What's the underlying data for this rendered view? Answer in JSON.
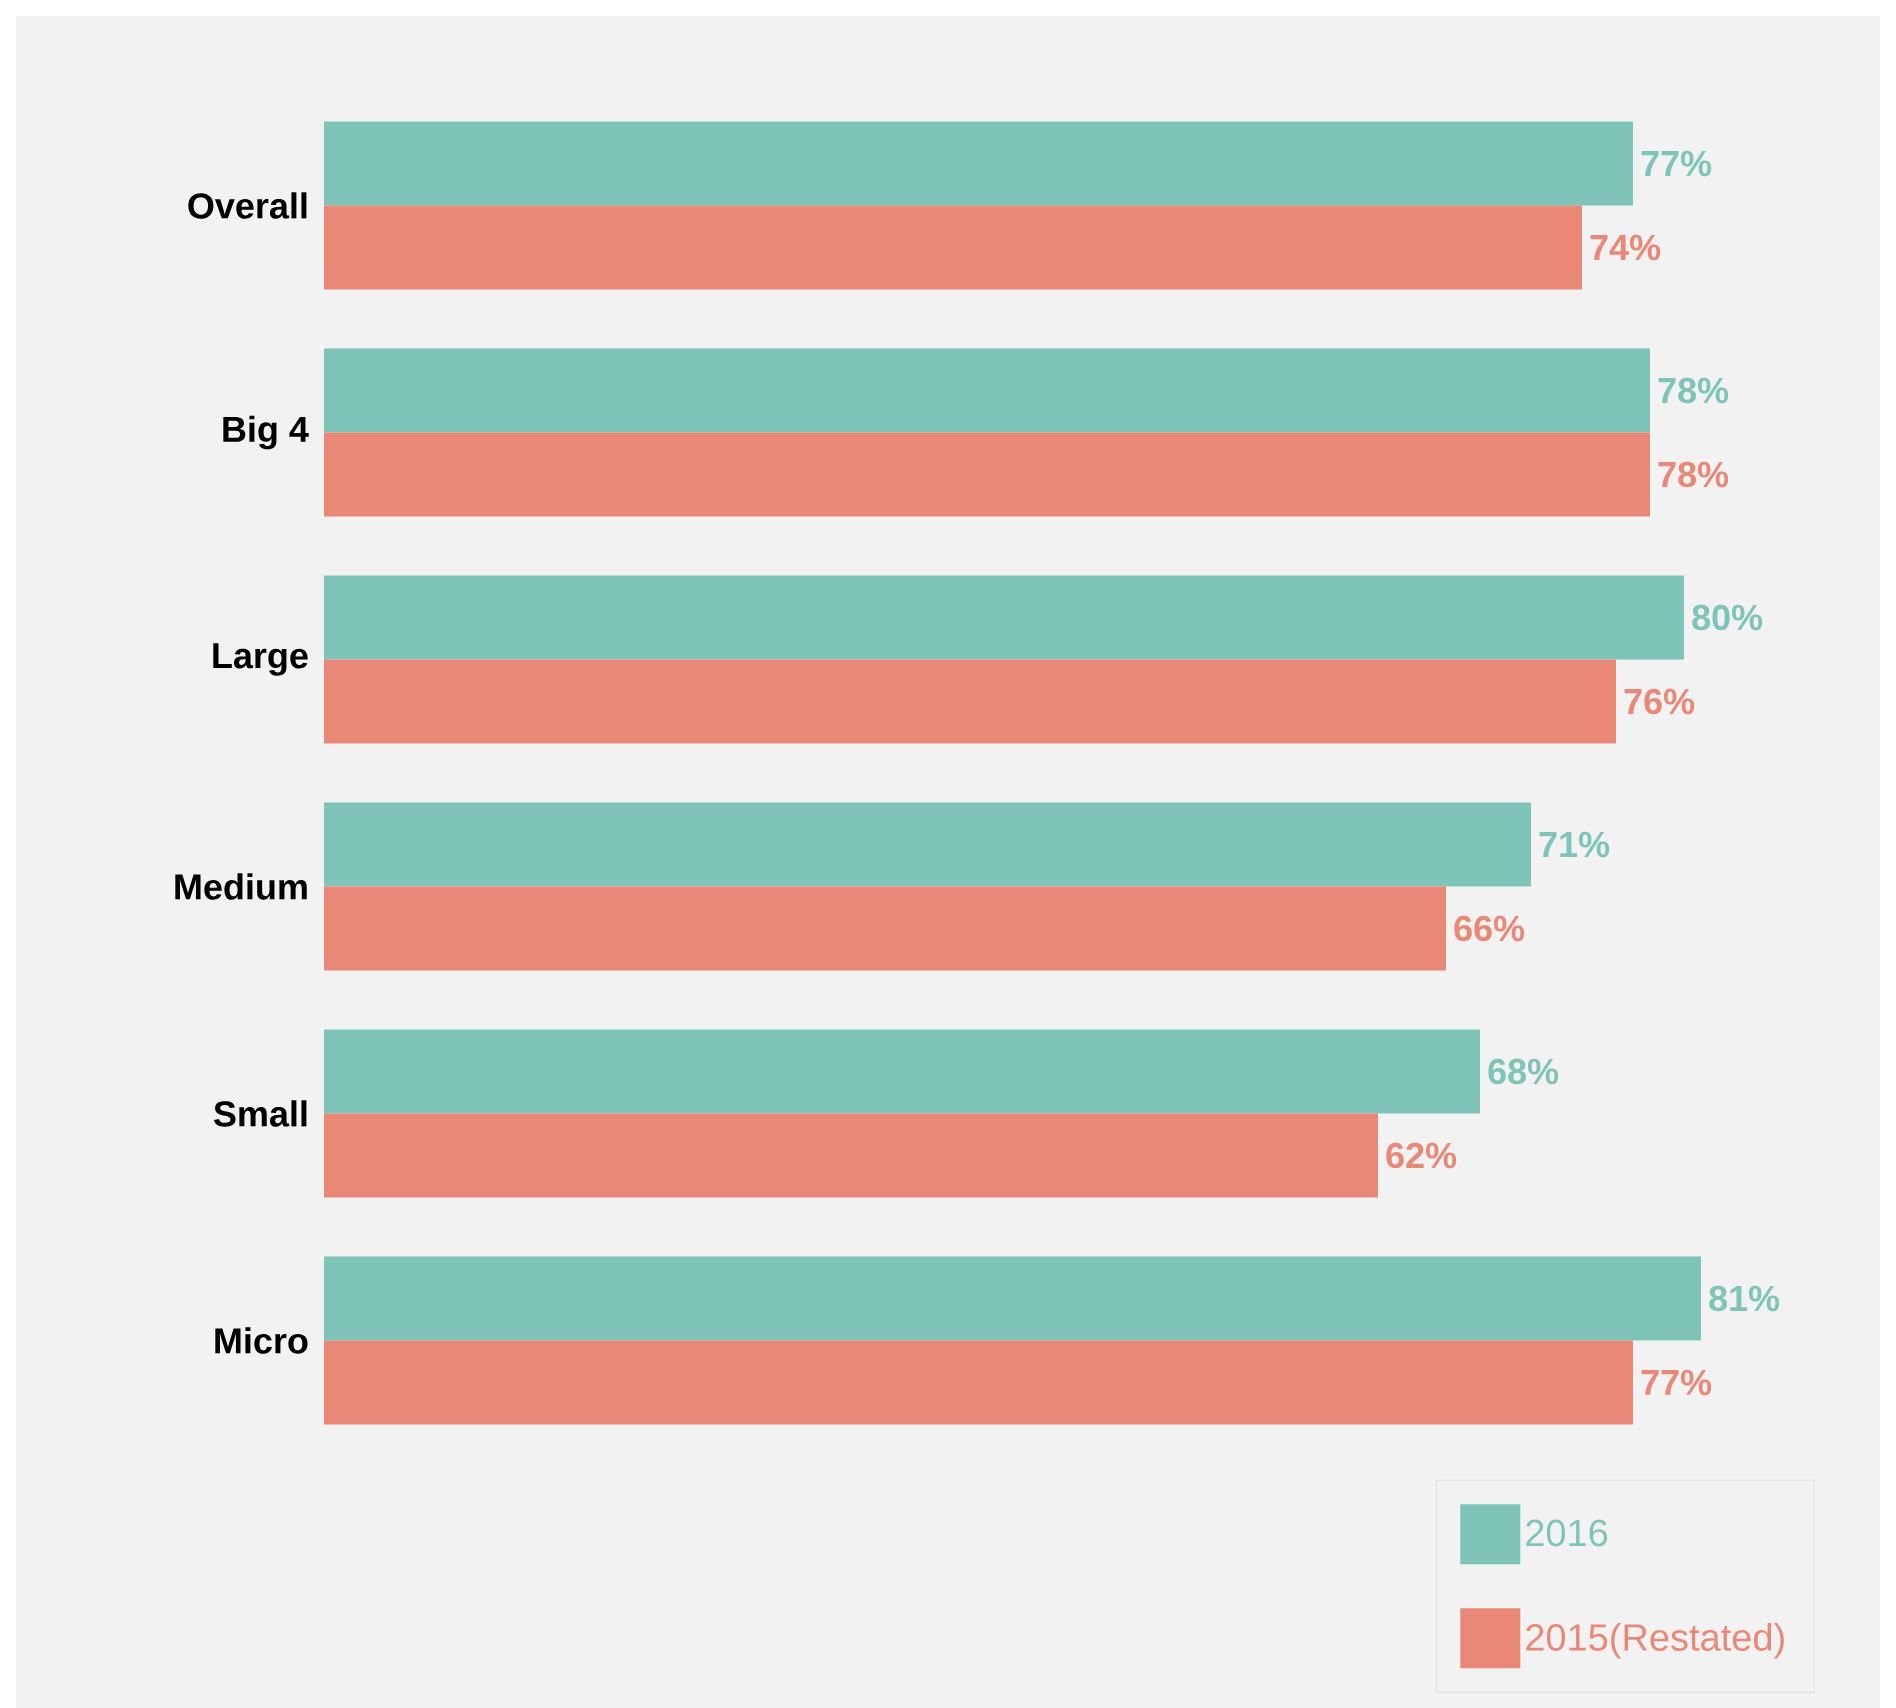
{
  "chart_data": {
    "type": "bar",
    "orientation": "horizontal",
    "categories": [
      "Overall",
      "Big 4",
      "Large",
      "Medium",
      "Small",
      "Micro"
    ],
    "series": [
      {
        "name": "2016",
        "color": "#7fc4b8",
        "values": [
          77,
          78,
          80,
          71,
          68,
          81
        ],
        "value_labels": [
          "77%",
          "78%",
          "80%",
          "71%",
          "68%",
          "81%"
        ]
      },
      {
        "name": "2015(Restated)",
        "color": "#ea8877",
        "values": [
          74,
          78,
          76,
          66,
          62,
          77
        ],
        "value_labels": [
          "74%",
          "78%",
          "76%",
          "66%",
          "62%",
          "77%"
        ]
      }
    ],
    "tick_labels": "y",
    "legend": "bottom right"
  }
}
